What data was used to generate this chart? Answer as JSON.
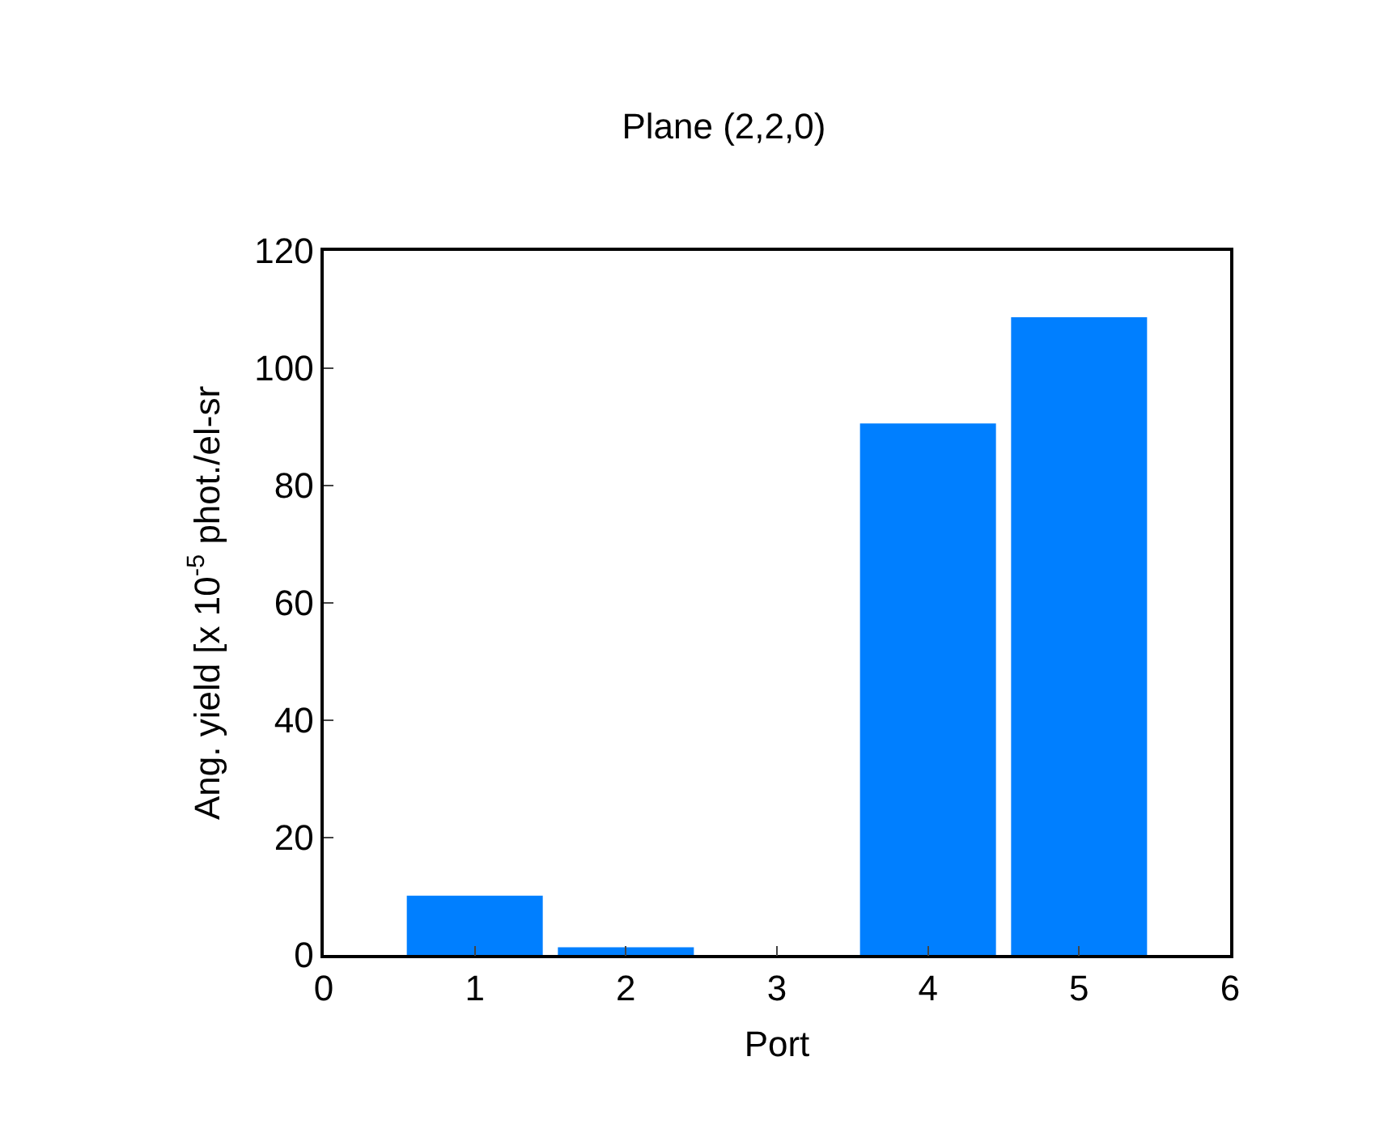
{
  "chart_data": {
    "type": "bar",
    "title": "Plane (2,2,0)",
    "xlabel": "Port",
    "ylabel": "Ang. yield [x 10$^{-5}$ phot./el-sr",
    "x": [
      1,
      2,
      3,
      4,
      5
    ],
    "values": [
      10.1,
      1.3,
      null,
      90.6,
      108.7
    ],
    "color": "#007fff",
    "xlim": [
      0,
      6
    ],
    "xticks": [
      0,
      1,
      2,
      3,
      4,
      5,
      6
    ],
    "ylim": [
      0,
      120
    ],
    "yticks": [
      0,
      20,
      40,
      60,
      80,
      100,
      120
    ]
  }
}
